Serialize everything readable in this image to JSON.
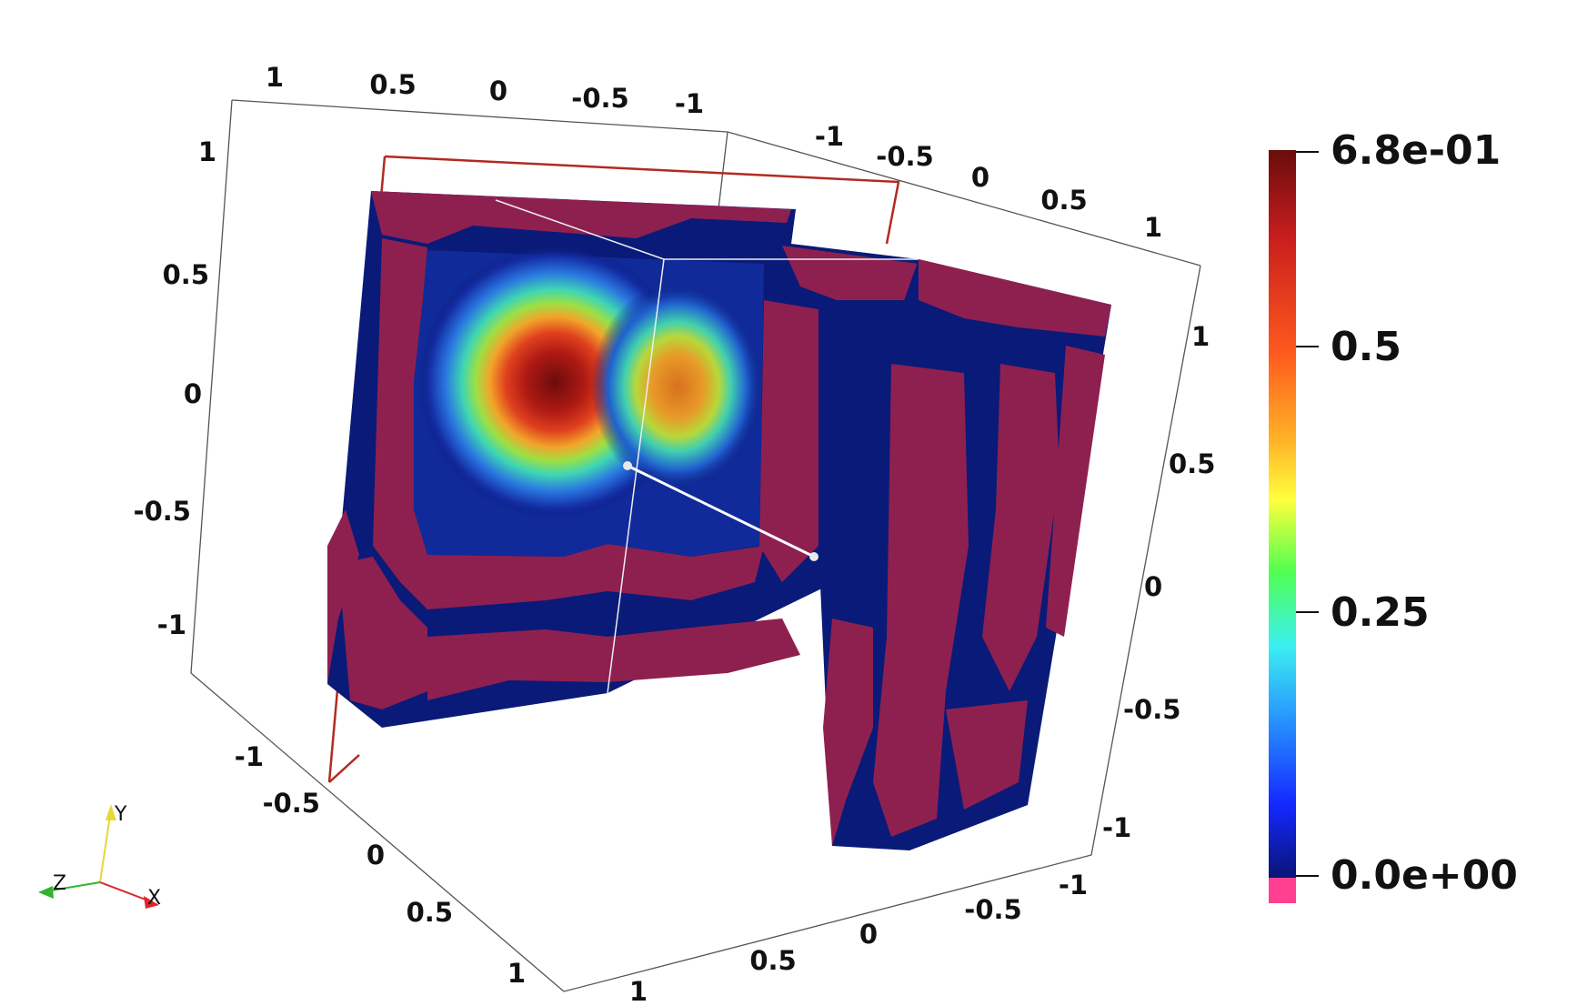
{
  "scene": {
    "type": "3d-render",
    "description_colors": {
      "background": "#ffffff",
      "mesh_low": "#0a1a78",
      "below_range": "#8e2050",
      "outline_box": "#b22a22",
      "axis_grid": "#555555"
    }
  },
  "axes": {
    "top_left_ticks": [
      "1",
      "0.5",
      "0",
      "-0.5",
      "-1"
    ],
    "top_right_ticks": [
      "-1",
      "-0.5",
      "0",
      "0.5",
      "1"
    ],
    "left_vertical_ticks": [
      "1",
      "0.5",
      "0",
      "-0.5",
      "-1"
    ],
    "right_vertical_ticks": [
      "1",
      "0.5",
      "0",
      "-0.5",
      "-1"
    ],
    "bottom_left_ticks": [
      "-1",
      "-0.5",
      "0",
      "0.5",
      "1"
    ],
    "bottom_right_ticks": [
      "1",
      "0.5",
      "0",
      "-0.5",
      "-1"
    ]
  },
  "colorbar": {
    "labels": [
      "6.8e-01",
      "0.5",
      "0.25",
      "0.0e+00"
    ],
    "range": [
      0.0,
      0.68
    ],
    "below_range_color": "#ff4090",
    "gradient": [
      "#6b0c0c",
      "#c81e1e",
      "#ff5a1e",
      "#ffb428",
      "#ffff3c",
      "#50ff50",
      "#3cf0f0",
      "#2896ff",
      "#1428ff",
      "#0a1478"
    ]
  },
  "orientation": {
    "x": "X",
    "y": "Y",
    "z": "Z",
    "x_color": "#d8262a",
    "y_color": "#e6d83a",
    "z_color": "#2fb52c"
  }
}
